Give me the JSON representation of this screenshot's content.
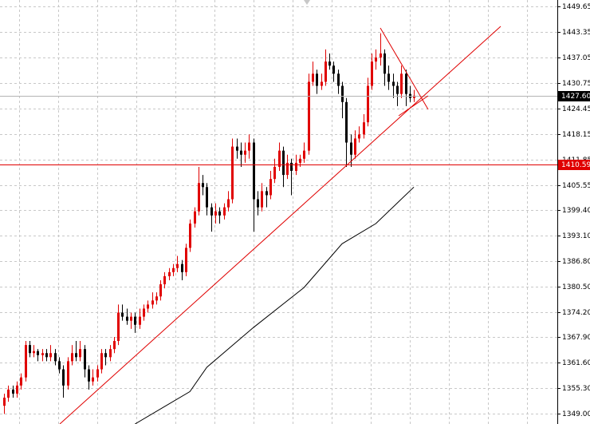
{
  "chart_data": {
    "type": "candlestick",
    "ylim": [
      1346.5,
      1451.2
    ],
    "yticks": [
      1449.65,
      1443.35,
      1437.05,
      1430.75,
      1424.45,
      1418.15,
      1411.85,
      1405.55,
      {
        "value": 1399.4,
        "label": "1399.40"
      },
      {
        "value": 1393.1,
        "label": "1393.10"
      },
      {
        "value": 1386.8,
        "label": "1386.80"
      },
      {
        "value": 1380.5,
        "label": "1380.50"
      },
      {
        "value": 1374.2,
        "label": "1374.20"
      },
      {
        "value": 1367.9,
        "label": "1367.90"
      },
      {
        "value": 1361.6,
        "label": "1361.60"
      },
      {
        "value": 1355.3,
        "label": "1355.30"
      },
      {
        "value": 1349,
        "label": "1349.00"
      }
    ],
    "grid": true,
    "up_color": "#e00000",
    "down_color": "#000000",
    "bid": {
      "value": 1427.6,
      "label": "1427.60"
    },
    "level": 1410.59,
    "ma": {
      "color": "#000000",
      "x": [
        31,
        44,
        48,
        59,
        71,
        80,
        88,
        97
      ],
      "values": [
        1346.5,
        1354.5,
        1360.5,
        1370.3,
        1380.2,
        1391,
        1396,
        1405
      ]
    },
    "candles": [
      [
        1351,
        1354,
        1349,
        1353
      ],
      [
        1353,
        1356,
        1352,
        1355
      ],
      [
        1355,
        1356,
        1353,
        1354
      ],
      [
        1354,
        1357,
        1353,
        1356
      ],
      [
        1356,
        1359,
        1355,
        1358
      ],
      [
        1358,
        1367,
        1357,
        1366
      ],
      [
        1366,
        1367,
        1363,
        1364
      ],
      [
        1364,
        1366,
        1363,
        1364.5
      ],
      [
        1364.5,
        1365,
        1362,
        1363.5
      ],
      [
        1363.5,
        1365,
        1362,
        1364
      ],
      [
        1364,
        1365,
        1362,
        1363
      ],
      [
        1363,
        1366,
        1362,
        1364
      ],
      [
        1364,
        1365,
        1361,
        1362
      ],
      [
        1362,
        1363,
        1359,
        1360
      ],
      [
        1360,
        1361,
        1353,
        1356
      ],
      [
        1356,
        1363,
        1355,
        1362
      ],
      [
        1362,
        1366,
        1361,
        1364
      ],
      [
        1364,
        1367,
        1362,
        1363
      ],
      [
        1363,
        1367,
        1362,
        1365
      ],
      [
        1365,
        1366,
        1358,
        1360
      ],
      [
        1360,
        1361,
        1355,
        1357
      ],
      [
        1357,
        1360,
        1356,
        1358
      ],
      [
        1358,
        1361,
        1357,
        1360
      ],
      [
        1360,
        1365,
        1359,
        1364
      ],
      [
        1364,
        1365,
        1361,
        1363
      ],
      [
        1363,
        1366,
        1362,
        1365
      ],
      [
        1365,
        1368,
        1364,
        1367
      ],
      [
        1367,
        1376,
        1366,
        1374
      ],
      [
        1374,
        1376,
        1372,
        1373
      ],
      [
        1373,
        1375,
        1371,
        1372
      ],
      [
        1372,
        1374,
        1370,
        1373
      ],
      [
        1373,
        1374,
        1369,
        1371
      ],
      [
        1371,
        1375,
        1370,
        1373
      ],
      [
        1373,
        1376,
        1372,
        1375
      ],
      [
        1375,
        1377,
        1374,
        1376
      ],
      [
        1376,
        1379,
        1375,
        1377
      ],
      [
        1377,
        1379,
        1376,
        1378
      ],
      [
        1378,
        1382,
        1377,
        1381
      ],
      [
        1381,
        1384,
        1380,
        1383
      ],
      [
        1383,
        1385,
        1382,
        1384
      ],
      [
        1384,
        1386,
        1383,
        1385
      ],
      [
        1385,
        1388,
        1384,
        1386
      ],
      [
        1386,
        1387,
        1382,
        1384
      ],
      [
        1384,
        1391,
        1383,
        1390
      ],
      [
        1390,
        1397,
        1389,
        1396
      ],
      [
        1396,
        1400,
        1395,
        1399
      ],
      [
        1399,
        1410,
        1398,
        1406
      ],
      [
        1406,
        1408,
        1403,
        1405
      ],
      [
        1405,
        1406,
        1398,
        1400
      ],
      [
        1400,
        1401,
        1394,
        1398
      ],
      [
        1398,
        1401,
        1396,
        1399
      ],
      [
        1399,
        1400,
        1396,
        1398
      ],
      [
        1398,
        1401,
        1397,
        1400
      ],
      [
        1400,
        1404,
        1399,
        1402
      ],
      [
        1402,
        1417,
        1401,
        1415
      ],
      [
        1415,
        1417,
        1412,
        1414
      ],
      [
        1414,
        1416,
        1410,
        1413
      ],
      [
        1413,
        1416,
        1411,
        1414
      ],
      [
        1414,
        1418,
        1412,
        1416
      ],
      [
        1416,
        1417,
        1394,
        1402
      ],
      [
        1402,
        1404,
        1398,
        1400
      ],
      [
        1400,
        1406,
        1399,
        1404
      ],
      [
        1404,
        1405,
        1400,
        1403
      ],
      [
        1403,
        1409,
        1402,
        1407
      ],
      [
        1407,
        1412,
        1406,
        1410
      ],
      [
        1410,
        1416,
        1409,
        1414
      ],
      [
        1414,
        1415,
        1405,
        1408
      ],
      [
        1408,
        1413,
        1407,
        1411
      ],
      [
        1411,
        1412,
        1403,
        1409
      ],
      [
        1409,
        1413,
        1408,
        1411
      ],
      [
        1411,
        1413,
        1410,
        1412
      ],
      [
        1412,
        1416,
        1411,
        1414
      ],
      [
        1414,
        1433,
        1413,
        1431
      ],
      [
        1431,
        1436,
        1430,
        1433
      ],
      [
        1433,
        1434,
        1428,
        1430
      ],
      [
        1430,
        1433,
        1429,
        1431
      ],
      [
        1431,
        1439,
        1430,
        1436
      ],
      [
        1436,
        1438,
        1434,
        1435
      ],
      [
        1435,
        1436,
        1431,
        1433
      ],
      [
        1433,
        1434,
        1428,
        1430
      ],
      [
        1430,
        1431,
        1422,
        1426
      ],
      [
        1426,
        1427,
        1410,
        1416
      ],
      [
        1416,
        1418,
        1410,
        1413
      ],
      [
        1413,
        1419,
        1412,
        1417
      ],
      [
        1417,
        1420,
        1416,
        1418
      ],
      [
        1418,
        1423,
        1417,
        1421
      ],
      [
        1421,
        1432,
        1420,
        1430
      ],
      [
        1430,
        1438,
        1429,
        1436
      ],
      [
        1436,
        1439,
        1434,
        1437
      ],
      [
        1437,
        1443,
        1435,
        1438
      ],
      [
        1438,
        1439,
        1430,
        1433
      ],
      [
        1433,
        1435,
        1429,
        1431
      ],
      [
        1431,
        1433,
        1427,
        1430
      ],
      [
        1430,
        1431,
        1425,
        1428
      ],
      [
        1428,
        1435,
        1427,
        1433
      ],
      [
        1433,
        1434,
        1425,
        1428
      ],
      [
        1428,
        1430,
        1426,
        1427
      ],
      [
        1427,
        1429,
        1426,
        1427.6
      ]
    ]
  }
}
